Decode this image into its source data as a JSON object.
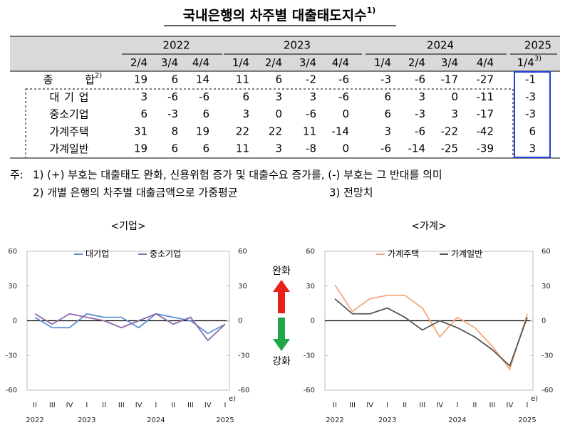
{
  "title": "국내은행의 차주별 대출태도지수",
  "title_note": "1)",
  "table": {
    "years": [
      {
        "label": "2022",
        "quarters": [
          "2/4",
          "3/4",
          "4/4"
        ]
      },
      {
        "label": "2023",
        "quarters": [
          "1/4",
          "2/4",
          "3/4",
          "4/4"
        ]
      },
      {
        "label": "2024",
        "quarters": [
          "1/4",
          "2/4",
          "3/4",
          "4/4"
        ]
      },
      {
        "label": "2025",
        "quarters": [
          "1/4"
        ],
        "note": "3)"
      }
    ],
    "rows": [
      {
        "label": "종 합",
        "note": "2)",
        "values": [
          19,
          6,
          14,
          11,
          6,
          -2,
          -6,
          -3,
          -6,
          -17,
          -27,
          -1
        ]
      },
      {
        "label": "대 기 업",
        "values": [
          3,
          -6,
          -6,
          6,
          3,
          3,
          -6,
          6,
          3,
          0,
          -11,
          -3
        ]
      },
      {
        "label": "중소기업",
        "values": [
          6,
          -3,
          6,
          3,
          0,
          -6,
          0,
          6,
          -3,
          3,
          -17,
          -3
        ]
      },
      {
        "label": "가계주택",
        "values": [
          31,
          8,
          19,
          22,
          22,
          11,
          -14,
          3,
          -6,
          -22,
          -42,
          6
        ]
      },
      {
        "label": "가계일반",
        "values": [
          19,
          6,
          6,
          11,
          3,
          -8,
          0,
          -6,
          -14,
          -25,
          -39,
          3
        ]
      }
    ]
  },
  "notes": {
    "prefix": "주:",
    "items": [
      "1) (+) 부호는 대출태도 완화, 신용위험 증가 및 대출수요 증가를, (-) 부호는 그 반대를 의미",
      "2) 개별 은행의 차주별 대출금액으로 가중평균",
      "3) 전망치"
    ]
  },
  "arrows": {
    "up": "완화",
    "down": "강화"
  },
  "chart_data": [
    {
      "type": "line",
      "title": "<기업>",
      "categories": [
        "II",
        "III",
        "IV",
        "I",
        "II",
        "III",
        "IV",
        "I",
        "II",
        "III",
        "IV",
        "I"
      ],
      "category_note": "e)",
      "year_labels": [
        "2022",
        null,
        null,
        "2023",
        null,
        null,
        null,
        "2024",
        null,
        null,
        null,
        "2025"
      ],
      "series": [
        {
          "name": "대기업",
          "color": "#5b8fd6",
          "values": [
            3,
            -6,
            -6,
            6,
            3,
            3,
            -6,
            6,
            3,
            0,
            -11,
            -3
          ]
        },
        {
          "name": "중소기업",
          "color": "#8e6aa8",
          "values": [
            6,
            -3,
            6,
            3,
            0,
            -6,
            0,
            6,
            -3,
            3,
            -17,
            -3
          ]
        }
      ],
      "ylim": [
        -60,
        60
      ],
      "yticks": [
        -60,
        -30,
        0,
        30,
        60
      ],
      "y2lim": [
        -60,
        60
      ],
      "y2ticks": [
        -60,
        -30,
        0,
        30,
        60
      ]
    },
    {
      "type": "line",
      "title": "<가계>",
      "categories": [
        "II",
        "III",
        "IV",
        "I",
        "II",
        "III",
        "IV",
        "I",
        "II",
        "III",
        "IV",
        "I"
      ],
      "category_note": "e)",
      "year_labels": [
        "2022",
        null,
        null,
        "2023",
        null,
        null,
        null,
        "2024",
        null,
        null,
        null,
        "2025"
      ],
      "series": [
        {
          "name": "가계주택",
          "color": "#f4a97a",
          "values": [
            31,
            8,
            19,
            22,
            22,
            11,
            -14,
            3,
            -6,
            -22,
            -42,
            6
          ]
        },
        {
          "name": "가계일반",
          "color": "#555555",
          "values": [
            19,
            6,
            6,
            11,
            3,
            -8,
            0,
            -6,
            -14,
            -25,
            -39,
            3
          ]
        }
      ],
      "ylim": [
        -60,
        60
      ],
      "yticks": [
        -60,
        -30,
        0,
        30,
        60
      ],
      "y2lim": [
        -60,
        60
      ],
      "y2ticks": [
        -60,
        -30,
        0,
        30,
        60
      ]
    }
  ]
}
